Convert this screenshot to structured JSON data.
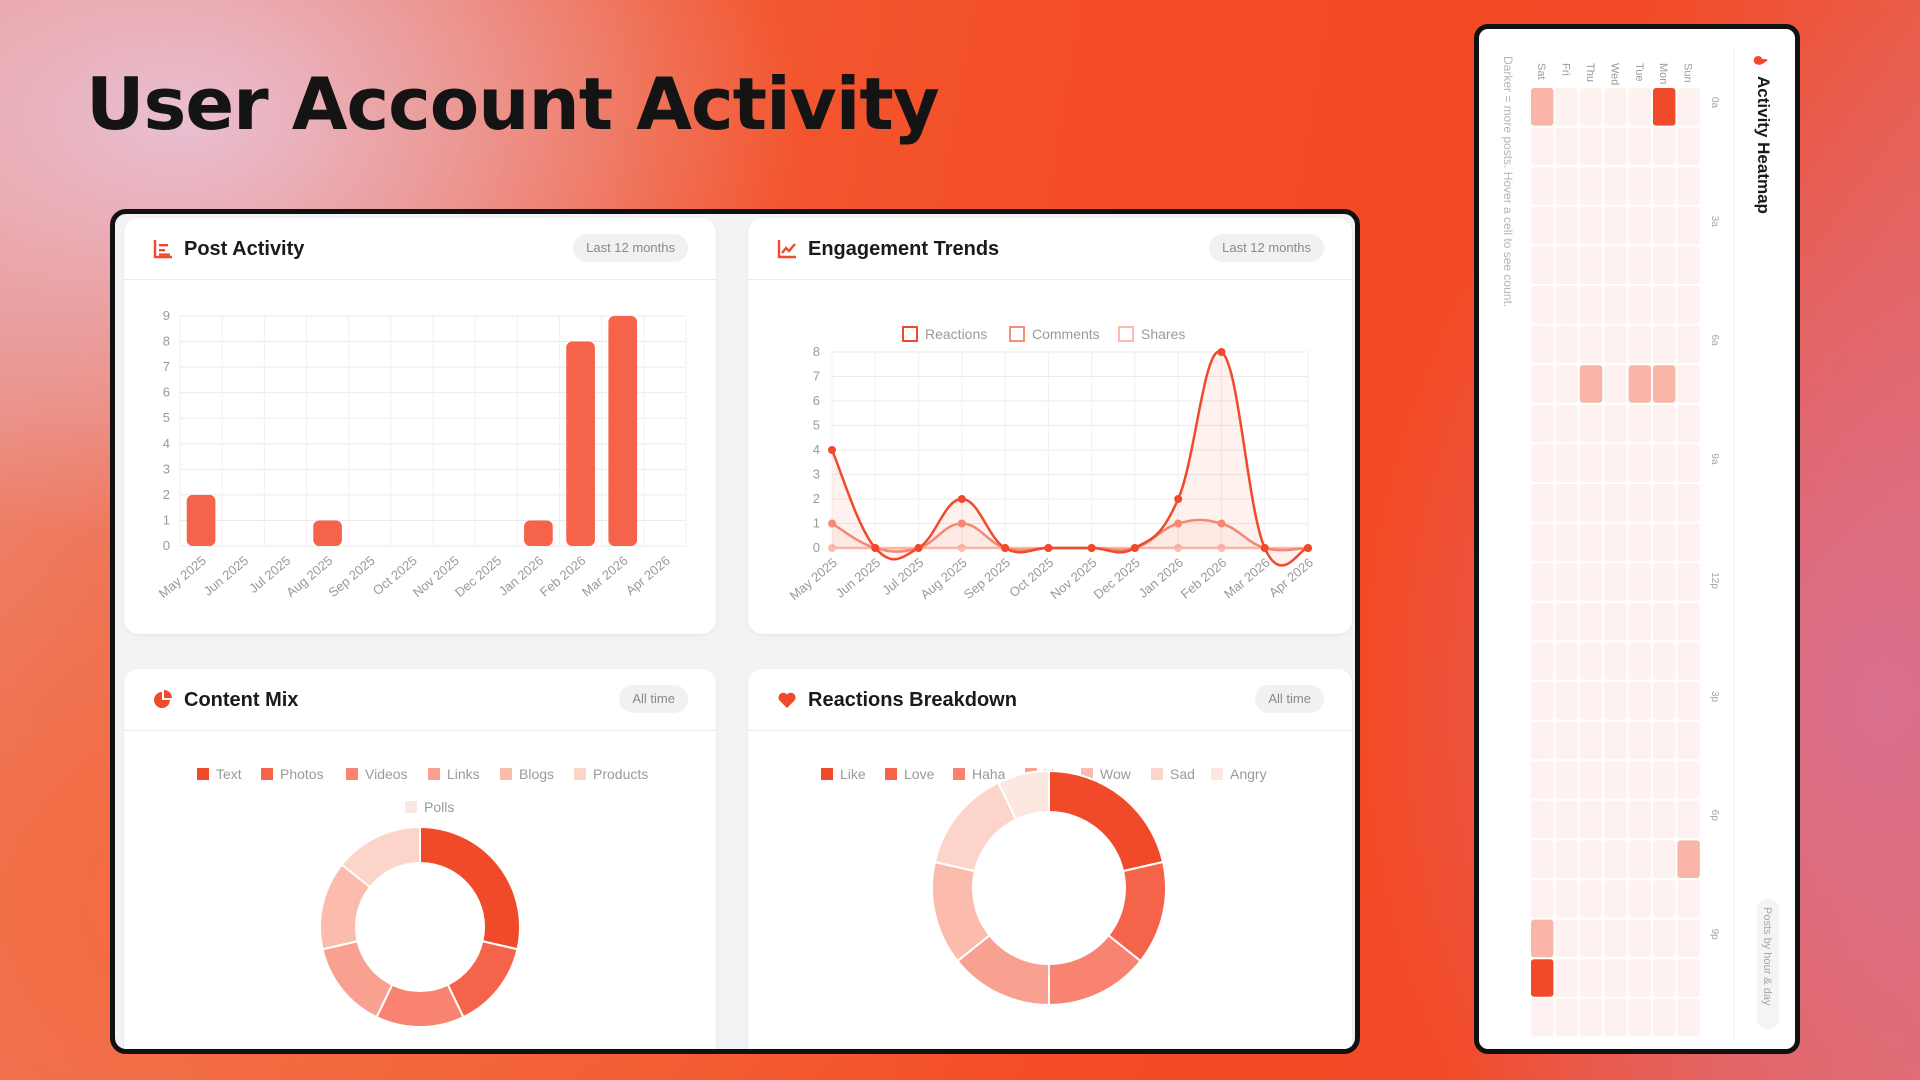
{
  "page": {
    "title": "User Account Activity"
  },
  "colors": {
    "accent": "#f04a2a",
    "bar": "#f5634a"
  },
  "post_activity": {
    "title": "Post Activity",
    "badge": "Last 12 months",
    "icon": "bar-chart-icon",
    "chart_data": {
      "type": "bar",
      "categories": [
        "May 2025",
        "Jun 2025",
        "Jul 2025",
        "Aug 2025",
        "Sep 2025",
        "Oct 2025",
        "Nov 2025",
        "Dec 2025",
        "Jan 2026",
        "Feb 2026",
        "Mar 2026",
        "Apr 2026"
      ],
      "values": [
        2,
        0,
        0,
        1,
        0,
        0,
        0,
        0,
        1,
        8,
        9,
        0
      ],
      "ylim": [
        0,
        9
      ],
      "yticks": [
        "0",
        "1",
        "2",
        "3",
        "4",
        "5",
        "6",
        "7",
        "8",
        "9"
      ],
      "grid": true
    }
  },
  "engagement_trends": {
    "title": "Engagement Trends",
    "badge": "Last 12 months",
    "icon": "line-chart-icon",
    "chart_data": {
      "type": "line",
      "categories": [
        "May 2025",
        "Jun 2025",
        "Jul 2025",
        "Aug 2025",
        "Sep 2025",
        "Oct 2025",
        "Nov 2025",
        "Dec 2025",
        "Jan 2026",
        "Feb 2026",
        "Mar 2026",
        "Apr 2026"
      ],
      "series": [
        {
          "name": "Reactions",
          "values": [
            4,
            0,
            0,
            2,
            0,
            0,
            0,
            0,
            2,
            8,
            0,
            0
          ],
          "color": "#f04a2a"
        },
        {
          "name": "Comments",
          "values": [
            1,
            0,
            0,
            1,
            0,
            0,
            0,
            0,
            1,
            1,
            0,
            0
          ],
          "color": "#f78d79"
        },
        {
          "name": "Shares",
          "values": [
            0,
            0,
            0,
            0,
            0,
            0,
            0,
            0,
            0,
            0,
            0,
            0
          ],
          "color": "#fbbcae"
        }
      ],
      "ylim": [
        0,
        8
      ],
      "yticks": [
        "0",
        "1",
        "2",
        "3",
        "4",
        "5",
        "6",
        "7",
        "8"
      ],
      "legend": "top",
      "grid": true
    }
  },
  "content_mix": {
    "title": "Content Mix",
    "badge": "All time",
    "icon": "pie-chart-icon",
    "chart_data": {
      "type": "pie",
      "labels": [
        "Text",
        "Photos",
        "Videos",
        "Links",
        "Blogs",
        "Products",
        "Polls"
      ],
      "values": [
        2,
        1,
        1,
        1,
        1,
        1,
        0
      ],
      "colors": [
        "#f04a2a",
        "#f5634a",
        "#f78370",
        "#f9a191",
        "#fbbcae",
        "#fcd4ca",
        "#fde7e1"
      ],
      "donut": true,
      "legend": "top"
    }
  },
  "reactions_breakdown": {
    "title": "Reactions Breakdown",
    "badge": "All time",
    "icon": "heart-icon",
    "chart_data": {
      "type": "pie",
      "labels": [
        "Like",
        "Love",
        "Haha",
        "Yay",
        "Wow",
        "Sad",
        "Angry"
      ],
      "values": [
        3,
        2,
        2,
        2,
        2,
        2,
        1
      ],
      "colors": [
        "#f04a2a",
        "#f5634a",
        "#f78370",
        "#f9a191",
        "#fbbcae",
        "#fcd4ca",
        "#fde7e1"
      ],
      "donut": true,
      "legend": "top"
    }
  },
  "heatmap": {
    "title": "Activity Heatmap",
    "icon": "flame-icon",
    "note": "Darker = more posts. Hover a cell to see count.",
    "tag": "Posts by hour & day",
    "days": [
      "Sun",
      "Mon",
      "Tue",
      "Wed",
      "Thu",
      "Fri",
      "Sat"
    ],
    "hour_labels": [
      "0a",
      "3a",
      "6a",
      "9a",
      "12p",
      "3p",
      "6p",
      "9p"
    ],
    "chart_data": {
      "type": "heatmap",
      "rows": [
        "Sun",
        "Mon",
        "Tue",
        "Wed",
        "Thu",
        "Fri",
        "Sat"
      ],
      "cols": [
        "0",
        "1",
        "2",
        "3",
        "4",
        "5",
        "6",
        "7",
        "8",
        "9",
        "10",
        "11",
        "12",
        "13",
        "14",
        "15",
        "16",
        "17",
        "18",
        "19",
        "20",
        "21",
        "22",
        "23"
      ],
      "cells": [
        {
          "day": "Mon",
          "hour": 0,
          "value": 3
        },
        {
          "day": "Sat",
          "hour": 0,
          "value": 1
        },
        {
          "day": "Mon",
          "hour": 7,
          "value": 1
        },
        {
          "day": "Tue",
          "hour": 7,
          "value": 1
        },
        {
          "day": "Thu",
          "hour": 7,
          "value": 1
        },
        {
          "day": "Sun",
          "hour": 19,
          "value": 1
        },
        {
          "day": "Sat",
          "hour": 21,
          "value": 1
        },
        {
          "day": "Sat",
          "hour": 22,
          "value": 3
        }
      ]
    }
  }
}
